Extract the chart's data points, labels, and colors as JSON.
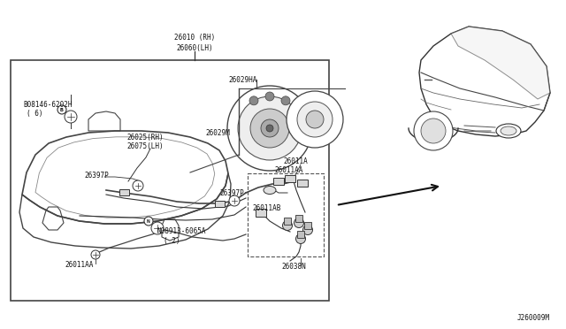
{
  "bg_color": "#ffffff",
  "diagram_id": "J260009M",
  "line_color": "#333333",
  "text_color": "#111111",
  "font_size": 6.0,
  "small_font_size": 5.5,
  "title_label1": "26010 (RH)",
  "title_label2": "26060(LH)"
}
